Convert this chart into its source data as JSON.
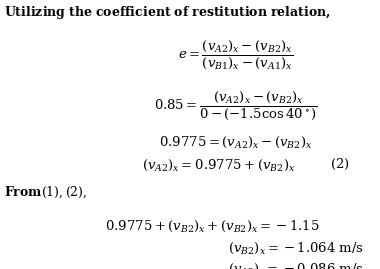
{
  "bg_color": "#ffffff",
  "text_color": "#000000",
  "figsize": [
    3.8,
    2.69
  ],
  "dpi": 100
}
